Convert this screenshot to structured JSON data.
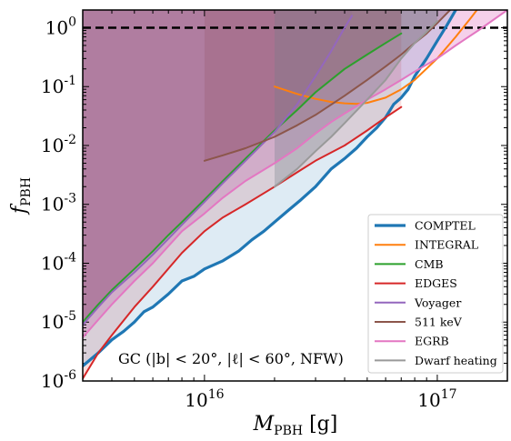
{
  "chart_data": {
    "type": "line",
    "xscale": "log",
    "yscale": "log",
    "xlim": [
      3000000000000000.0,
      2e+17
    ],
    "ylim": [
      1e-06,
      2
    ],
    "xlabel": "M_PBH [g]",
    "ylabel": "f_PBH",
    "x_tick_labels": [
      {
        "value": 1e+16,
        "base": "10",
        "exp": "16"
      },
      {
        "value": 1e+17,
        "base": "10",
        "exp": "17"
      }
    ],
    "y_tick_labels": [
      {
        "value": 1e-06,
        "base": "10",
        "exp": "-6"
      },
      {
        "value": 1e-05,
        "base": "10",
        "exp": "-5"
      },
      {
        "value": 0.0001,
        "base": "10",
        "exp": "-4"
      },
      {
        "value": 0.001,
        "base": "10",
        "exp": "-3"
      },
      {
        "value": 0.01,
        "base": "10",
        "exp": "-2"
      },
      {
        "value": 0.1,
        "base": "10",
        "exp": "-1"
      },
      {
        "value": 1,
        "base": "10",
        "exp": "0"
      }
    ],
    "reference_line": {
      "y": 1,
      "style": "dashed",
      "color": "#000000"
    },
    "annotation": "GC (|b| < 20°, |ℓ| < 60°, NFW)",
    "legend_position": "lower-right",
    "series": [
      {
        "name": "COMPTEL",
        "color": "#1f77b4",
        "width": 3.2,
        "x": [
          3000000000000000.0,
          3500000000000000.0,
          4000000000000000.0,
          4500000000000000.0,
          5000000000000000.0,
          5500000000000000.0,
          6000000000000000.0,
          7000000000000000.0,
          8000000000000000.0,
          9000000000000000.0,
          1e+16,
          1.2e+16,
          1.4e+16,
          1.6e+16,
          1.8e+16,
          2e+16,
          2.3e+16,
          2.6e+16,
          3e+16,
          3.5e+16,
          4e+16,
          4.5e+16,
          5e+16,
          5.5e+16,
          6e+16,
          6.5e+16,
          7e+16,
          7.5e+16,
          8e+16,
          9e+16,
          1e+17,
          1.1e+17,
          1.2e+17,
          1.3e+17
        ],
        "y": [
          1.8e-06,
          3e-06,
          5e-06,
          7e-06,
          1e-05,
          1.5e-05,
          1.8e-05,
          3e-05,
          5e-05,
          6e-05,
          8e-05,
          0.00011,
          0.00016,
          0.00025,
          0.00035,
          0.0005,
          0.0008,
          0.0012,
          0.002,
          0.004,
          0.006,
          0.009,
          0.014,
          0.02,
          0.03,
          0.05,
          0.065,
          0.09,
          0.15,
          0.3,
          0.6,
          1.1,
          2,
          3
        ]
      },
      {
        "name": "INTEGRAL",
        "color": "#ff7f0e",
        "width": 2,
        "x": [
          2e+16,
          2.5e+16,
          3e+16,
          3.5e+16,
          4e+16,
          4.5e+16,
          5e+16,
          6e+16,
          7e+16,
          8e+16,
          1e+17,
          1.2e+17,
          1.4e+17,
          1.6e+17
        ],
        "y": [
          0.1,
          0.075,
          0.062,
          0.055,
          0.052,
          0.051,
          0.053,
          0.065,
          0.09,
          0.13,
          0.3,
          0.7,
          1.5,
          3
        ]
      },
      {
        "name": "CMB",
        "color": "#2ca02c",
        "width": 2,
        "x": [
          3000000000000000.0,
          3500000000000000.0,
          4000000000000000.0,
          5000000000000000.0,
          6000000000000000.0,
          7000000000000000.0,
          8000000000000000.0,
          1e+16,
          1.2e+16,
          1.5e+16,
          2e+16,
          2.5e+16,
          3e+16,
          4e+16,
          5e+16,
          6e+16,
          7e+16
        ],
        "y": [
          1e-05,
          2e-05,
          3.5e-05,
          8e-05,
          0.00016,
          0.0003,
          0.0005,
          0.0012,
          0.0025,
          0.006,
          0.018,
          0.04,
          0.08,
          0.2,
          0.35,
          0.55,
          0.8
        ]
      },
      {
        "name": "EDGES",
        "color": "#d62728",
        "width": 2,
        "x": [
          3000000000000000.0,
          3500000000000000.0,
          4000000000000000.0,
          5000000000000000.0,
          6000000000000000.0,
          8000000000000000.0,
          1e+16,
          1.2e+16,
          1.5e+16,
          2e+16,
          2.5e+16,
          3e+16,
          4e+16,
          5e+16,
          6e+16,
          7e+16
        ],
        "y": [
          1.1e-06,
          3e-06,
          6e-06,
          1.8e-05,
          4e-05,
          0.00015,
          0.00035,
          0.0006,
          0.001,
          0.002,
          0.0035,
          0.0055,
          0.01,
          0.018,
          0.03,
          0.045
        ]
      },
      {
        "name": "Voyager",
        "color": "#9467bd",
        "width": 2,
        "x": [
          3000000000000000.0,
          3500000000000000.0,
          4000000000000000.0,
          5000000000000000.0,
          6000000000000000.0,
          7000000000000000.0,
          8000000000000000.0,
          1e+16,
          1.2e+16,
          1.5e+16,
          2e+16,
          2.5e+16,
          3e+16,
          3.5e+16,
          4e+16,
          4.3e+16
        ],
        "y": [
          9e-06,
          1.8e-05,
          3.2e-05,
          7e-05,
          0.00014,
          0.00026,
          0.00045,
          0.0011,
          0.0023,
          0.0055,
          0.017,
          0.05,
          0.15,
          0.4,
          1,
          1.6
        ]
      },
      {
        "name": "511 keV",
        "color": "#8c564b",
        "width": 2,
        "x": [
          1e+16,
          1.2e+16,
          1.5e+16,
          2e+16,
          2.5e+16,
          3e+16,
          4e+16,
          5e+16,
          6e+16,
          7e+16,
          8e+16,
          9e+16,
          1e+17,
          1.2e+17
        ],
        "y": [
          0.0055,
          0.0068,
          0.009,
          0.014,
          0.022,
          0.033,
          0.07,
          0.13,
          0.22,
          0.35,
          0.55,
          0.8,
          1.2,
          2.5
        ]
      },
      {
        "name": "EGRB",
        "color": "#e377c2",
        "width": 2,
        "x": [
          3000000000000000.0,
          3500000000000000.0,
          4000000000000000.0,
          5000000000000000.0,
          6000000000000000.0,
          8000000000000000.0,
          1e+16,
          1.2e+16,
          1.5e+16,
          2e+16,
          2.5e+16,
          3e+16,
          3.5e+16,
          4e+16,
          5e+16,
          6e+16,
          7e+16,
          8e+16,
          1e+17,
          1.2e+17,
          1.5e+17,
          2e+17
        ],
        "y": [
          5.5e-06,
          1.1e-05,
          2e-05,
          5e-05,
          0.0001,
          0.00035,
          0.0007,
          0.0013,
          0.0025,
          0.005,
          0.009,
          0.016,
          0.025,
          0.035,
          0.06,
          0.09,
          0.13,
          0.18,
          0.3,
          0.5,
          0.9,
          2
        ]
      },
      {
        "name": "Dwarf heating",
        "color": "#999999",
        "width": 2,
        "x": [
          2e+16,
          2.5e+16,
          3e+16,
          3.5e+16,
          4e+16,
          5e+16,
          6e+16,
          7e+16,
          8e+16,
          9e+16,
          1e+17
        ],
        "y": [
          0.002,
          0.004,
          0.008,
          0.014,
          0.024,
          0.06,
          0.13,
          0.3,
          0.55,
          0.85,
          1.3
        ]
      }
    ],
    "shaded_regions": [
      {
        "series": "CMB",
        "color": "#8c564b",
        "opacity": 0.5
      },
      {
        "series": "Voyager",
        "color": "#9467bd",
        "opacity": 0.25
      },
      {
        "series": "511 keV",
        "color": "#8c564b",
        "opacity": 0.35
      },
      {
        "series": "EGRB",
        "color": "#e377c2",
        "opacity": 0.35
      },
      {
        "series": "EDGES",
        "color": "#d62728",
        "opacity": 0.15
      },
      {
        "series": "Dwarf heating",
        "color": "#7f7f7f",
        "opacity": 0.3
      },
      {
        "series": "COMPTEL",
        "color": "#1f77b4",
        "opacity": 0.15
      }
    ]
  }
}
